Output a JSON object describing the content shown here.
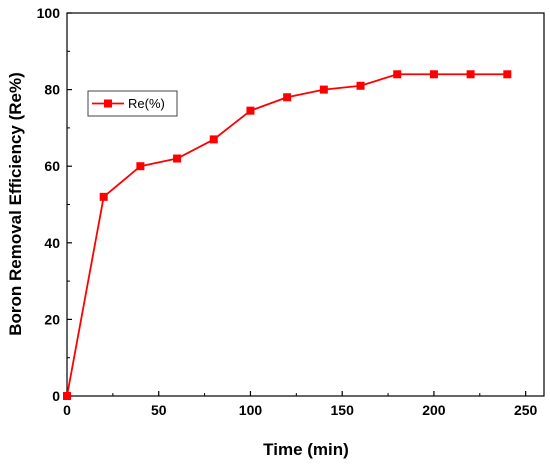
{
  "chart_data": {
    "type": "line",
    "xlabel": "Time (min)",
    "ylabel": "Boron Removal  Efficiency (Re%)",
    "xlim": [
      0,
      260
    ],
    "ylim": [
      0,
      100
    ],
    "xticks": [
      0,
      50,
      100,
      150,
      200,
      250
    ],
    "yticks": [
      0,
      20,
      40,
      60,
      80,
      100
    ],
    "grid": false,
    "legend_position": "top-left",
    "series": [
      {
        "name": "Re(%)",
        "color": "#ff0000",
        "marker": "square",
        "x": [
          0,
          20,
          40,
          60,
          80,
          100,
          120,
          140,
          160,
          180,
          200,
          220,
          240
        ],
        "y": [
          0,
          52,
          60,
          62,
          67,
          74.5,
          78,
          80,
          81,
          84,
          84,
          84,
          84
        ]
      }
    ]
  }
}
